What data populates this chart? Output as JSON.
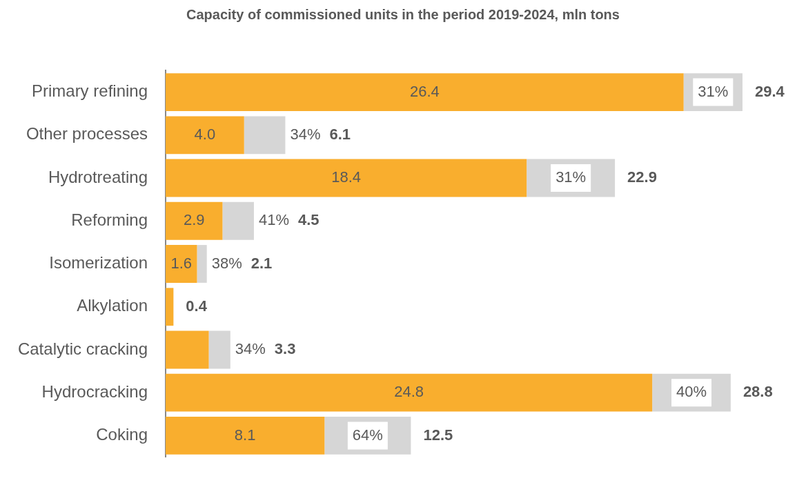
{
  "chart_data": {
    "type": "bar",
    "orientation": "horizontal",
    "stacked": true,
    "title": "Capacity of commissioned units in the period 2019-2024, mln tons",
    "categories": [
      "Primary refining",
      "Other processes",
      "Hydrotreating",
      "Reforming",
      "Isomerization",
      "Alkylation",
      "Catalytic cracking",
      "Hydrocracking",
      "Coking"
    ],
    "series": [
      {
        "color": "#f9ae2e",
        "values": [
          26.4,
          4.0,
          18.4,
          2.9,
          1.6,
          0.4,
          2.2,
          24.8,
          8.1
        ],
        "value_labels": [
          "26.4",
          "4.0",
          "18.4",
          "2.9",
          "1.6",
          null,
          null,
          "24.8",
          "8.1"
        ]
      },
      {
        "color": "#d6d6d6",
        "values": [
          3.0,
          2.1,
          4.5,
          1.6,
          0.5,
          null,
          1.1,
          4.0,
          4.4
        ]
      }
    ],
    "totals": [
      "29.4",
      "6.1",
      "22.9",
      "4.5",
      "2.1",
      "0.4",
      "3.3",
      "28.8",
      "12.5"
    ],
    "annotations": [
      {
        "text": "31%",
        "x": 27.9,
        "y": "Primary refining"
      },
      {
        "text": "34%",
        "x": 5.05,
        "y": "Other processes"
      },
      {
        "text": "31%",
        "x": 20.65,
        "y": "Hydrotreating"
      },
      {
        "text": "41%",
        "x": 3.7,
        "y": "Reforming"
      },
      {
        "text": "38%",
        "x": 1.85,
        "y": "Isomerization"
      },
      {
        "text": "34%",
        "x": 2.75,
        "y": "Catalytic cracking"
      },
      {
        "text": "40%",
        "x": 26.8,
        "y": "Hydrocracking"
      },
      {
        "text": "64%",
        "x": 10.3,
        "y": "Coking"
      }
    ],
    "tick_labels": "y",
    "grid": false,
    "legend": false
  }
}
